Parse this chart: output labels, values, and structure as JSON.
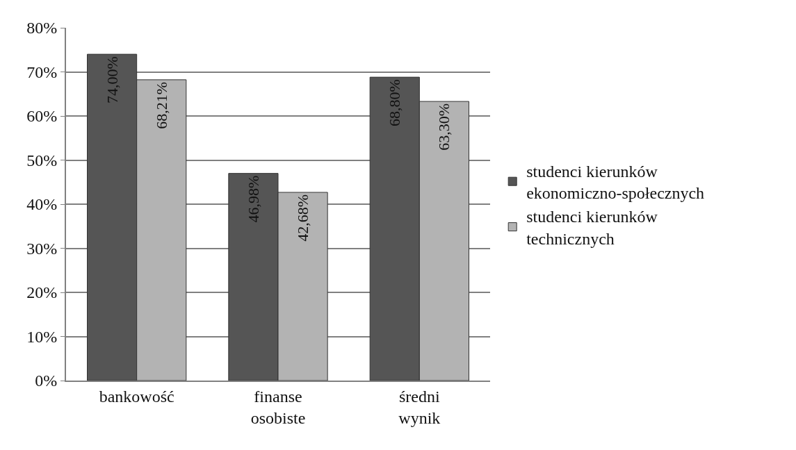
{
  "chart_data": {
    "type": "bar",
    "categories": [
      "bankowość",
      "finanse osobiste",
      "średni wynik"
    ],
    "series": [
      {
        "name": "studenci kierunków ekonomiczno-społecznych",
        "color": "#555555",
        "values": [
          74.0,
          46.98,
          68.8
        ],
        "value_labels": [
          "74,00%",
          "46,98%",
          "68,80%"
        ]
      },
      {
        "name": "studenci kierunków technicznych",
        "color": "#b3b3b3",
        "values": [
          68.21,
          42.68,
          63.3
        ],
        "value_labels": [
          "68,21%",
          "42,68%",
          "63,30%"
        ]
      }
    ],
    "ylim": [
      0,
      80
    ],
    "yticks": [
      {
        "value": 0,
        "label": "0%"
      },
      {
        "value": 10,
        "label": "10%"
      },
      {
        "value": 20,
        "label": "20%"
      },
      {
        "value": 30,
        "label": "30%"
      },
      {
        "value": 40,
        "label": "40%"
      },
      {
        "value": 50,
        "label": "50%"
      },
      {
        "value": 60,
        "label": "60%"
      },
      {
        "value": 70,
        "label": "70%"
      },
      {
        "value": 80,
        "label": "80%"
      }
    ],
    "grid": "y",
    "legend": "right"
  }
}
